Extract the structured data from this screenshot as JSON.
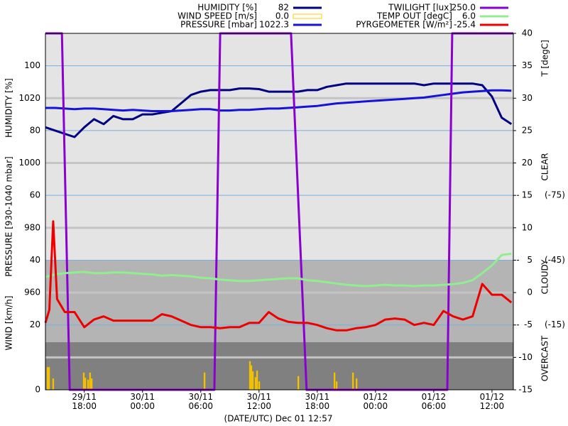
{
  "chart_data": {
    "type": "line",
    "xlabel": "(DATE/UTC) Dec 01 12:57",
    "ylabels": [
      "HUMIDITY [%]",
      "PRESSURE [930-1040 mbar]",
      "WIND [km/h]"
    ],
    "y2label": "T [degC]",
    "cloud_labels": [
      "CLEAR",
      "CLOUDY",
      "OVERCAST"
    ],
    "xlim": [
      14,
      62.2
    ],
    "xticks": [
      {
        "value": 18,
        "label": "29/11 18:00"
      },
      {
        "value": 24,
        "label": "30/11 00:00"
      },
      {
        "value": 30,
        "label": "30/11 06:00"
      },
      {
        "value": 36,
        "label": "30/11 12:00"
      },
      {
        "value": 42,
        "label": "30/11 18:00"
      },
      {
        "value": 48,
        "label": "01/12 00:00"
      },
      {
        "value": 54,
        "label": "01/12 06:00"
      },
      {
        "value": 60,
        "label": "01/12 12:00"
      }
    ],
    "ylim": [
      0,
      110
    ],
    "yticks": [
      0,
      20,
      40,
      60,
      80,
      100
    ],
    "pressure_lim": [
      930,
      1040
    ],
    "pressure_ticks": [
      {
        "value": 940,
        "label": null
      },
      960,
      980,
      1000,
      1020
    ],
    "y2lim": [
      -15,
      40
    ],
    "y2ticks": [
      -15,
      -10,
      -5,
      0,
      5,
      10,
      15,
      20,
      25,
      30,
      35,
      40
    ],
    "pyr_lim": [
      15,
      -150
    ],
    "pyr_ticks": [
      {
        "value": -75,
        "label": "(-75)"
      },
      {
        "value": -45,
        "label": "(-45)"
      },
      {
        "value": -15,
        "label": "(-15)"
      }
    ],
    "twilight_lim": [
      0,
      250
    ],
    "grid": true,
    "series": [
      {
        "name": "HUMIDITY [%]",
        "current": "82",
        "color": "#000080",
        "axis": "y",
        "kind": "line",
        "x": [
          14,
          15,
          16,
          17,
          18,
          19,
          20,
          21,
          22,
          23,
          24,
          25,
          26,
          27,
          28,
          29,
          30,
          31,
          32,
          33,
          34,
          35,
          36,
          37,
          38,
          39,
          40,
          41,
          42,
          43,
          44,
          45,
          46,
          47,
          48,
          49,
          50,
          51,
          52,
          53,
          54,
          55,
          56,
          57,
          58,
          59,
          60,
          61,
          62
        ],
        "values": [
          81,
          80,
          79,
          78,
          81,
          83.5,
          82,
          84.5,
          83.5,
          83.5,
          85,
          85,
          85.5,
          86,
          88.5,
          91,
          92,
          92.5,
          92.5,
          92.5,
          93,
          93,
          92.8,
          92,
          92,
          92,
          92,
          92.5,
          92.5,
          93.5,
          94,
          94.5,
          94.5,
          94.5,
          94.5,
          94.5,
          94.5,
          94.5,
          94.5,
          94,
          94.5,
          94.5,
          94.5,
          94.5,
          94.5,
          94,
          90.5,
          84,
          82
        ]
      },
      {
        "name": "WIND SPEED [m/s]",
        "current": "0.0",
        "color": "#ffcc00",
        "axis": "y",
        "kind": "bar",
        "x": [
          14.22,
          14.37,
          14.8,
          17.95,
          18.1,
          18.39,
          18.6,
          18.76,
          30.39,
          35.07,
          35.21,
          35.36,
          35.65,
          35.8,
          36.02,
          40.05,
          43.78,
          44.0,
          45.68,
          46.05
        ],
        "values": [
          7,
          7,
          3.5,
          5.3,
          3.7,
          3.1,
          5.3,
          3.5,
          5.3,
          8.8,
          7.5,
          5.7,
          3.9,
          5.9,
          2.6,
          4.2,
          5.3,
          2.6,
          5.3,
          3.5
        ]
      },
      {
        "name": "PRESSURE [mbar]",
        "current": "1022.3",
        "color": "#1414d8",
        "axis": "pressure",
        "kind": "line",
        "x": [
          14,
          15,
          16,
          17,
          18,
          19,
          20,
          21,
          22,
          23,
          24,
          25,
          26,
          27,
          28,
          29,
          30,
          31,
          32,
          33,
          34,
          35,
          36,
          37,
          38,
          39,
          40,
          41,
          42,
          43,
          44,
          45,
          46,
          47,
          48,
          49,
          50,
          51,
          52,
          53,
          54,
          55,
          56,
          57,
          58,
          59,
          60,
          61,
          62
        ],
        "values": [
          1017,
          1017,
          1016.8,
          1016.6,
          1016.8,
          1016.8,
          1016.6,
          1016.4,
          1016.2,
          1016.4,
          1016.2,
          1016,
          1016,
          1016,
          1016.2,
          1016.4,
          1016.6,
          1016.6,
          1016.2,
          1016.2,
          1016.4,
          1016.4,
          1016.6,
          1016.8,
          1016.8,
          1017,
          1017.2,
          1017.4,
          1017.6,
          1018,
          1018.4,
          1018.6,
          1018.8,
          1019,
          1019.2,
          1019.4,
          1019.6,
          1019.8,
          1020,
          1020.2,
          1020.6,
          1021,
          1021.4,
          1021.8,
          1022,
          1022.2,
          1022.4,
          1022.4,
          1022.3
        ]
      },
      {
        "name": "TWILIGHT [lux]",
        "current": "250.0",
        "color": "#8a00d0",
        "axis": "twilight",
        "kind": "line",
        "x": [
          14,
          15.7,
          16.5,
          31.4,
          32,
          39.3,
          40.9,
          55.4,
          55.9,
          62.2
        ],
        "values": [
          250,
          250,
          0,
          0,
          250,
          250,
          0,
          0,
          250,
          250
        ]
      },
      {
        "name": "TEMP OUT [degC]",
        "current": "6.0",
        "color": "#90ee90",
        "axis": "y2",
        "kind": "line",
        "x": [
          14,
          15,
          16,
          17,
          18,
          19,
          20,
          21,
          22,
          23,
          24,
          25,
          26,
          27,
          28,
          29,
          30,
          31,
          32,
          33,
          34,
          35,
          36,
          37,
          38,
          39,
          40,
          41,
          42,
          43,
          44,
          45,
          46,
          47,
          48,
          49,
          50,
          51,
          52,
          53,
          54,
          55,
          56,
          57,
          58,
          59,
          60,
          61,
          62
        ],
        "values": [
          2.4,
          2.8,
          3.0,
          3.1,
          3.2,
          3.0,
          3.0,
          3.1,
          3.1,
          3.0,
          2.9,
          2.8,
          2.6,
          2.7,
          2.6,
          2.5,
          2.3,
          2.2,
          2.0,
          1.9,
          1.8,
          1.8,
          1.9,
          2.0,
          2.1,
          2.2,
          2.2,
          1.9,
          1.8,
          1.6,
          1.4,
          1.2,
          1.1,
          1.0,
          1.1,
          1.2,
          1.1,
          1.1,
          1.0,
          1.1,
          1.1,
          1.2,
          1.3,
          1.5,
          1.9,
          3.0,
          4.2,
          5.8,
          6.0
        ]
      },
      {
        "name": "PYRGEOMETER [W/m²]",
        "current": "-25.4",
        "color": "#ee0000",
        "axis": "pyr",
        "kind": "line",
        "x": [
          14,
          14.4,
          14.8,
          15.2,
          16,
          17,
          18,
          19,
          20,
          21,
          22,
          23,
          24,
          25,
          26,
          27,
          28,
          29,
          30,
          31,
          32,
          33,
          34,
          35,
          36,
          37,
          38,
          39,
          40,
          41,
          42,
          43,
          44,
          45,
          46,
          47,
          48,
          49,
          50,
          51,
          52,
          53,
          54,
          55,
          56,
          57,
          58,
          59,
          60,
          61,
          62
        ],
        "values": [
          -16,
          -22,
          -63,
          -27,
          -21,
          -21,
          -14,
          -17.5,
          -19,
          -17,
          -17,
          -17,
          -17,
          -17,
          -20,
          -19,
          -17,
          -15,
          -14,
          -14,
          -13.5,
          -14,
          -14,
          -16,
          -16,
          -21,
          -18,
          -16.5,
          -16,
          -16,
          -15,
          -13.5,
          -12.5,
          -12.5,
          -13.5,
          -14,
          -15,
          -17.5,
          -18,
          -17.5,
          -15,
          -16,
          -15,
          -21.5,
          -19,
          -17.5,
          -19,
          -34,
          -29,
          -29,
          -25.4
        ]
      }
    ]
  }
}
